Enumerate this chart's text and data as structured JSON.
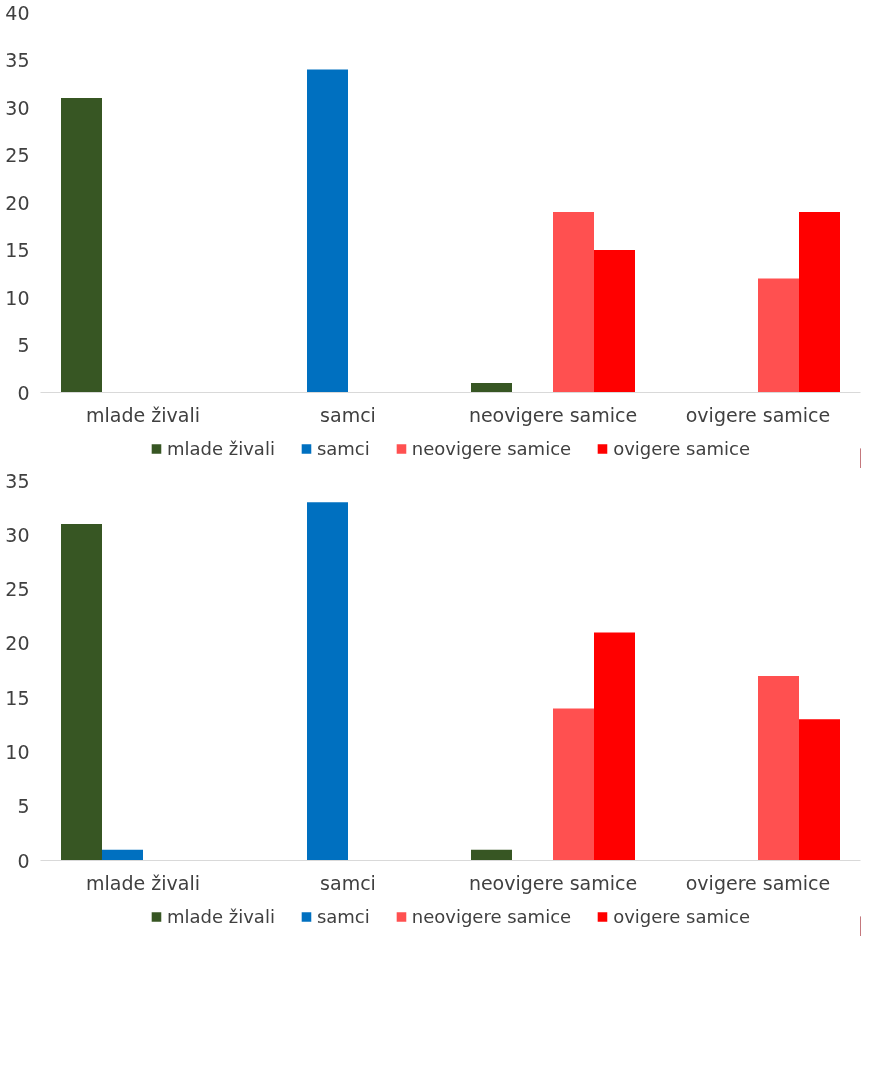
{
  "chart_data": [
    {
      "type": "bar",
      "categories": [
        "mlade živali",
        "samci",
        "neovigere samice",
        "ovigere samice"
      ],
      "series": [
        {
          "name": "mlade živali",
          "color": "#375623",
          "values": [
            31,
            null,
            1,
            null
          ]
        },
        {
          "name": "samci",
          "color": "#0070c0",
          "values": [
            null,
            34,
            null,
            null
          ]
        },
        {
          "name": "neovigere samice",
          "color": "#ff5050",
          "values": [
            null,
            null,
            19,
            12
          ]
        },
        {
          "name": "ovigere samice",
          "color": "#ff0000",
          "values": [
            null,
            null,
            15,
            19
          ]
        }
      ],
      "ylim": [
        0,
        40
      ],
      "yticks": [
        0,
        5,
        10,
        15,
        20,
        25,
        30,
        35,
        40
      ],
      "grid": false,
      "legend": "bottom"
    },
    {
      "type": "bar",
      "categories": [
        "mlade živali",
        "samci",
        "neovigere samice",
        "ovigere samice"
      ],
      "series": [
        {
          "name": "mlade živali",
          "color": "#375623",
          "values": [
            31,
            null,
            1,
            null
          ]
        },
        {
          "name": "samci",
          "color": "#0070c0",
          "values": [
            1,
            33,
            null,
            null
          ]
        },
        {
          "name": "neovigere samice",
          "color": "#ff5050",
          "values": [
            null,
            null,
            14,
            17
          ]
        },
        {
          "name": "ovigere samice",
          "color": "#ff0000",
          "values": [
            null,
            null,
            21,
            13
          ]
        }
      ],
      "ylim": [
        0,
        35
      ],
      "yticks": [
        0,
        5,
        10,
        15,
        20,
        25,
        30,
        35
      ],
      "grid": false,
      "legend": "bottom"
    }
  ]
}
